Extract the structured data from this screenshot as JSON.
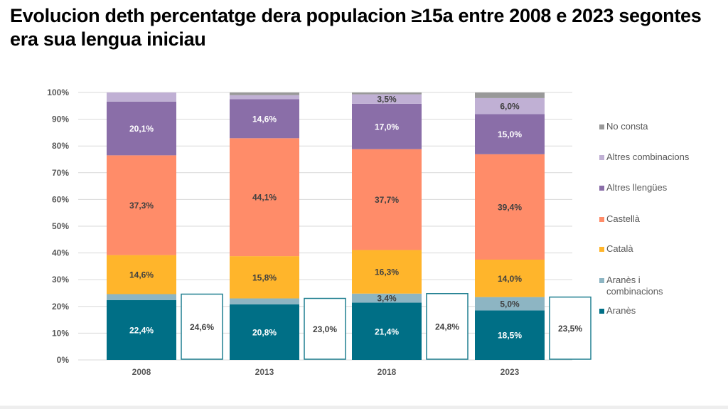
{
  "title": "Evolucion deth percentatge dera populacion ≥15a entre 2008 e 2023 segontes era sua lengua iniciau",
  "chart_data": {
    "type": "bar",
    "stacked": true,
    "title": "Evolucion deth percentatge dera populacion ≥15a entre 2008 e 2023 segontes era sua lengua iniciau",
    "xlabel": "",
    "ylabel": "",
    "ylim": [
      0,
      100
    ],
    "yticks": [
      "0%",
      "10%",
      "20%",
      "30%",
      "40%",
      "50%",
      "60%",
      "70%",
      "80%",
      "90%",
      "100%"
    ],
    "grid": true,
    "legend_position": "right",
    "categories": [
      "2008",
      "2013",
      "2018",
      "2023"
    ],
    "series": [
      {
        "name": "Aranès",
        "color": "#006f86",
        "label_color": "#ffffff",
        "values": [
          22.4,
          20.8,
          21.4,
          18.5
        ],
        "labels": [
          "22,4%",
          "20,8%",
          "21,4%",
          "18,5%"
        ]
      },
      {
        "name": "Aranès i combinacions",
        "color": "#8db5c3",
        "label_color": "#404040",
        "values": [
          2.2,
          2.2,
          3.4,
          5.0
        ],
        "labels": [
          "",
          "",
          "3,4%",
          "5,0%"
        ]
      },
      {
        "name": "Català",
        "color": "#ffb52b",
        "label_color": "#404040",
        "values": [
          14.6,
          15.8,
          16.3,
          14.0
        ],
        "labels": [
          "14,6%",
          "15,8%",
          "16,3%",
          "14,0%"
        ]
      },
      {
        "name": "Castellà",
        "color": "#ff8c69",
        "label_color": "#404040",
        "values": [
          37.3,
          44.1,
          37.7,
          39.4
        ],
        "labels": [
          "37,3%",
          "44,1%",
          "37,7%",
          "39,4%"
        ]
      },
      {
        "name": "Altres llengües",
        "color": "#8a6ea8",
        "label_color": "#ffffff",
        "values": [
          20.1,
          14.6,
          17.0,
          15.0
        ],
        "labels": [
          "20,1%",
          "14,6%",
          "17,0%",
          "15,0%"
        ]
      },
      {
        "name": "Altres combinacions",
        "color": "#c0b0d4",
        "label_color": "#404040",
        "values": [
          3.4,
          1.5,
          3.5,
          6.0
        ],
        "labels": [
          "",
          "",
          "3,5%",
          "6,0%"
        ]
      },
      {
        "name": "No consta",
        "color": "#999999",
        "label_color": "#404040",
        "values": [
          0.0,
          1.0,
          0.7,
          2.1
        ],
        "labels": [
          "",
          "",
          "",
          ""
        ]
      }
    ],
    "totals_boxes": {
      "description": "Aranès + Aranès i combinacions",
      "values": [
        24.6,
        23.0,
        24.8,
        23.5
      ],
      "labels": [
        "24,6%",
        "23,0%",
        "24,8%",
        "23,5%"
      ],
      "border_color": "#1f7f90"
    },
    "legend_order": [
      "No consta",
      "Altres combinacions",
      "Altres llengües",
      "Castellà",
      "Català",
      "Aranès i combinacions",
      "Aranès"
    ]
  }
}
